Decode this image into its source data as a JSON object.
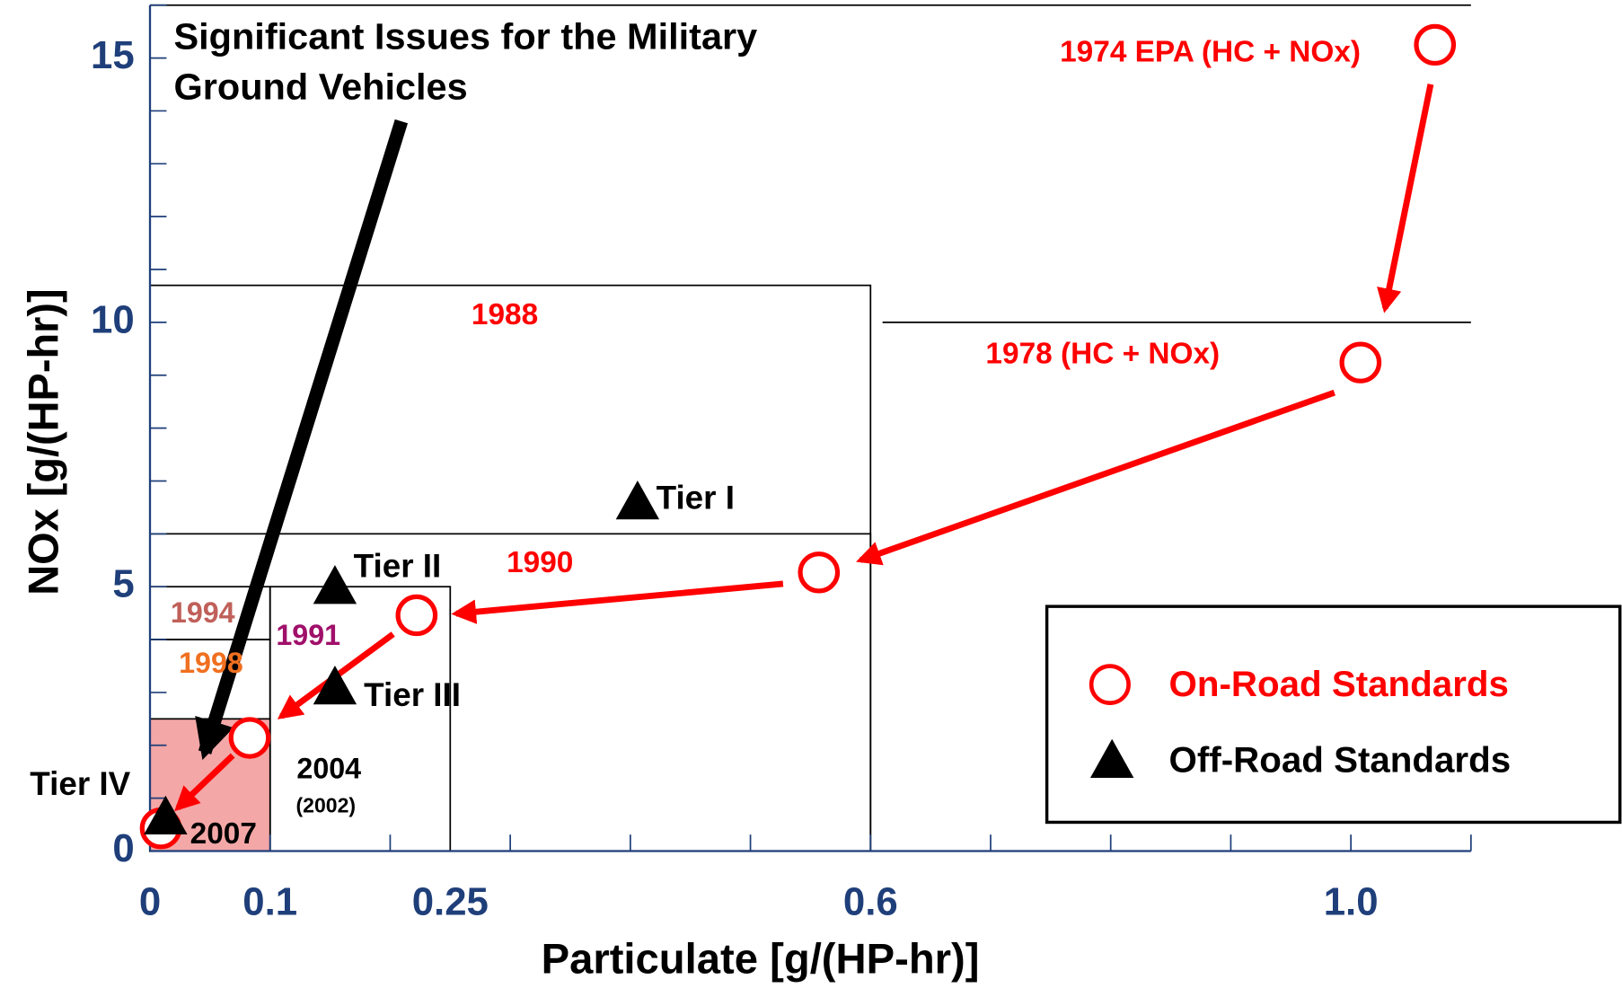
{
  "chart_data": {
    "type": "scatter",
    "xlabel": "Particulate [g/(HP-hr)]",
    "ylabel": "NOx [g/(HP-hr)]",
    "xlim": [
      0,
      1.1
    ],
    "ylim": [
      0,
      16
    ],
    "xticks": [
      0,
      0.1,
      0.25,
      0.6,
      {
        "value": 1,
        "label": "1.0"
      }
    ],
    "yticks": [
      0,
      5,
      10,
      15
    ],
    "x_minor_ticks": [
      0.1,
      0.2,
      0.3,
      0.4,
      0.5,
      0.6,
      0.7,
      0.8,
      0.9,
      1,
      1.1
    ],
    "y_minor_ticks": [
      1,
      2,
      3,
      4,
      5,
      6,
      7,
      8,
      9,
      10,
      11,
      12,
      13,
      14,
      15,
      16
    ],
    "series": [
      {
        "name": "On-Road Standards",
        "color": "#ff0000",
        "marker": "circle",
        "x": [
          1.07,
          1.008,
          0.557,
          0.222,
          0.083,
          0.009
        ],
        "values": [
          15.25,
          9.24,
          5.27,
          4.46,
          2.14,
          0.43
        ]
      },
      {
        "name": "Off-Road Standards",
        "color": "#000000",
        "marker": "triangle",
        "x": [
          0.406,
          0.154,
          0.154,
          0.013
        ],
        "values": [
          6.6,
          5.0,
          3.1,
          0.64
        ],
        "labels": [
          "Tier I",
          "Tier II",
          "Tier III",
          "Tier IV"
        ]
      }
    ],
    "regions": [
      {
        "x": [
          0,
          0.6
        ],
        "y": [
          0,
          10.7
        ]
      },
      {
        "x": [
          0,
          0.6
        ],
        "y": [
          0,
          6
        ]
      },
      {
        "x": [
          0.1,
          0.25
        ],
        "y": [
          0,
          5
        ]
      },
      {
        "x": [
          0,
          0.1
        ],
        "y": [
          4,
          5
        ]
      },
      {
        "x": [
          0,
          0.1
        ],
        "y": [
          0,
          4
        ]
      },
      {
        "x": [
          0,
          0.1
        ],
        "y": [
          0,
          2.5
        ],
        "color": "#f4a7a7"
      }
    ],
    "hlines": [
      {
        "x": [
          0.61,
          1.1
        ],
        "y": 10
      }
    ],
    "annotations": [
      "1974 EPA (HC + NOx)",
      "1978 (HC + NOx)",
      "1988",
      "1990",
      "1994",
      "1998",
      "1991",
      "2004",
      "(2002)",
      "2007"
    ],
    "note": [
      "Significant Issues for the Military",
      "Ground Vehicles"
    ],
    "legend": "lower right"
  }
}
